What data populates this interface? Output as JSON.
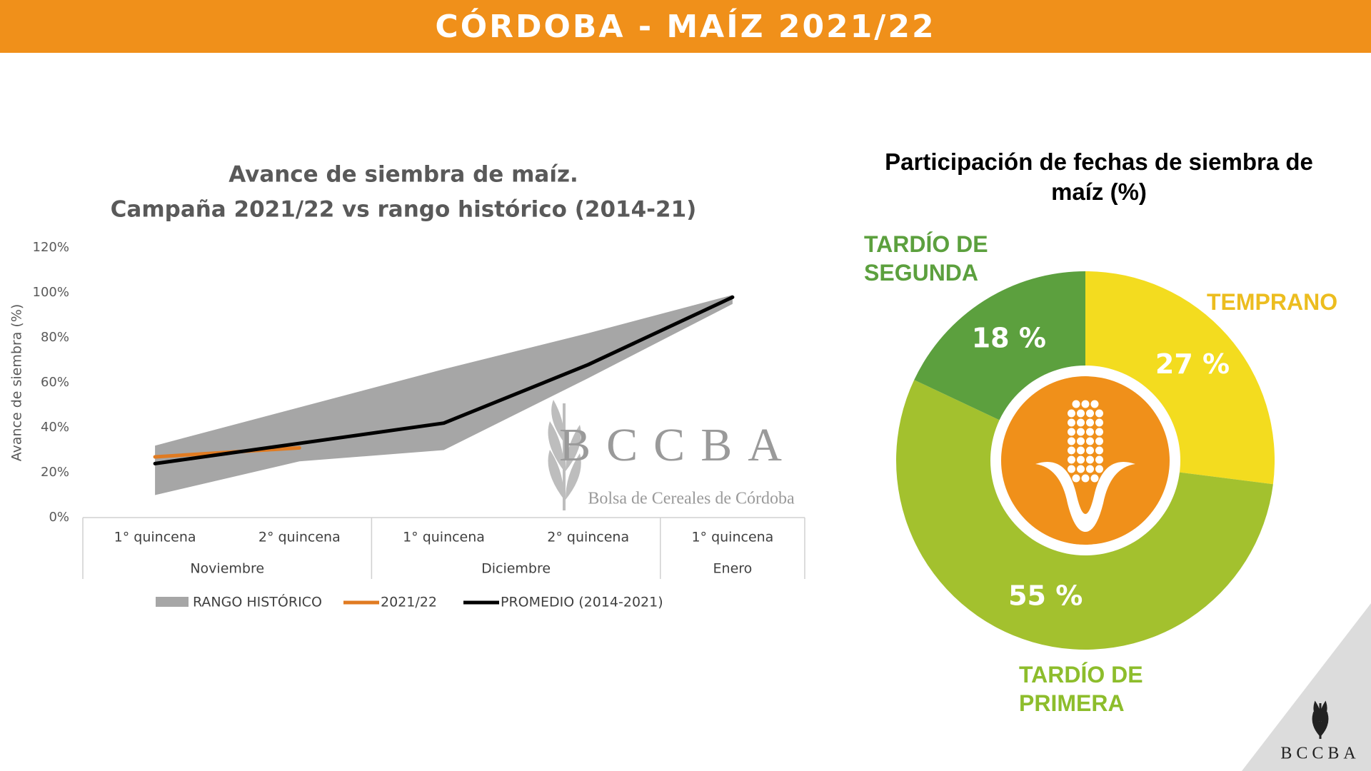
{
  "header": {
    "title": "CÓRDOBA - MAÍZ 2021/22"
  },
  "logo": {
    "watermark_name": "BCCBA",
    "watermark_subtitle": "Bolsa de Cereales de Córdoba",
    "corner_name": "BCCBA"
  },
  "chart_data": [
    {
      "type": "line",
      "title": "Avance de siembra de maíz.",
      "subtitle": "Campaña 2021/22 vs rango histórico (2014-21)",
      "y_label": "Avance de siembra (%)",
      "groups": [
        {
          "name": "Noviembre",
          "categories": [
            "1° quincena",
            "2° quincena"
          ]
        },
        {
          "name": "Diciembre",
          "categories": [
            "1° quincena",
            "2° quincena"
          ]
        },
        {
          "name": "Enero",
          "categories": [
            "1° quincena"
          ]
        }
      ],
      "series": [
        {
          "name": "RANGO HISTÓRICO",
          "color": "#a6a6a6",
          "low": [
            10,
            25,
            30,
            62,
            95
          ],
          "high": [
            32,
            49,
            66,
            82,
            99
          ]
        },
        {
          "name": "2021/22",
          "color": "#e07b22",
          "values": [
            27,
            31,
            null,
            null,
            null
          ]
        },
        {
          "name": "PROMEDIO (2014-2021)",
          "color": "#000000",
          "values": [
            24,
            33,
            42,
            68,
            98
          ]
        }
      ],
      "ylim": [
        0,
        120
      ],
      "yticks": [
        {
          "value": 0,
          "label": "0%"
        },
        {
          "value": 20,
          "label": "20%"
        },
        {
          "value": 40,
          "label": "40%"
        },
        {
          "value": 60,
          "label": "60%"
        },
        {
          "value": 80,
          "label": "80%"
        },
        {
          "value": 100,
          "label": "100%"
        },
        {
          "value": 120,
          "label": "120%"
        }
      ],
      "grid": false,
      "legend": "bottom"
    },
    {
      "type": "donut",
      "title": "Participación de fechas de siembra de maíz (%)",
      "categories": [
        "TEMPRANO",
        "TARDÍO DE PRIMERA",
        "TARDÍO DE SEGUNDA"
      ],
      "values": [
        27,
        55,
        18
      ],
      "value_labels": [
        "27 %",
        "55 %",
        "18 %"
      ],
      "colors": [
        "#f3dc1f",
        "#a3c12e",
        "#5ca03e"
      ],
      "label_colors": [
        "#ecbd1f",
        "#8dbd2c",
        "#5ca03e"
      ]
    }
  ]
}
